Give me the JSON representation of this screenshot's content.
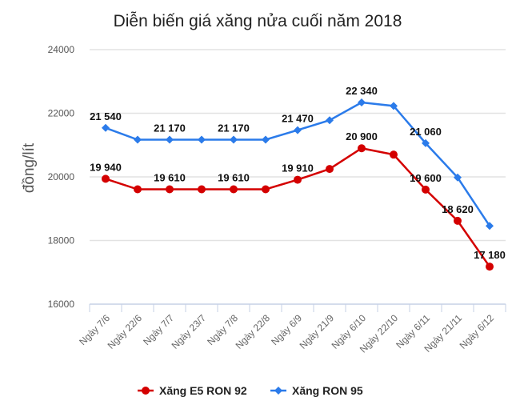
{
  "chart_data": {
    "type": "line",
    "title": "Diễn biến giá xăng nửa cuối năm 2018",
    "xlabel": "",
    "ylabel": "đồng/lít",
    "ylim": [
      16000,
      24000
    ],
    "yticks": [
      "16000",
      "18000",
      "20000",
      "22000",
      "24000"
    ],
    "grid": true,
    "legend_position": "bottom",
    "categories": [
      "Ngày 7/6",
      "Ngày 22/6",
      "Ngày 7/7",
      "Ngày 23/7",
      "Ngày 7/8",
      "Ngày 22/8",
      "Ngày 6/9",
      "Ngày 21/9",
      "Ngày 6/10",
      "Ngày 22/10",
      "Ngày 6/11",
      "Ngày 21/11",
      "Ngày 6/12"
    ],
    "series": [
      {
        "name": "Xăng E5 RON 92",
        "color": "#d40000",
        "marker": "circle",
        "values": [
          19940,
          19610,
          19610,
          19610,
          19610,
          19610,
          19910,
          20250,
          20900,
          20700,
          19600,
          18620,
          17180
        ],
        "labels": [
          "19 940",
          null,
          "19 610",
          null,
          "19 610",
          null,
          "19 910",
          null,
          "20 900",
          null,
          "19 600",
          "18 620",
          "17 180"
        ]
      },
      {
        "name": "Xăng RON 95",
        "color": "#2b7bea",
        "marker": "diamond",
        "values": [
          21540,
          21170,
          21170,
          21170,
          21170,
          21170,
          21470,
          21780,
          22340,
          22230,
          21060,
          19980,
          18460
        ],
        "labels": [
          "21 540",
          null,
          "21 170",
          null,
          "21 170",
          null,
          "21 470",
          null,
          "22 340",
          null,
          "21 060",
          null,
          null
        ]
      }
    ]
  }
}
